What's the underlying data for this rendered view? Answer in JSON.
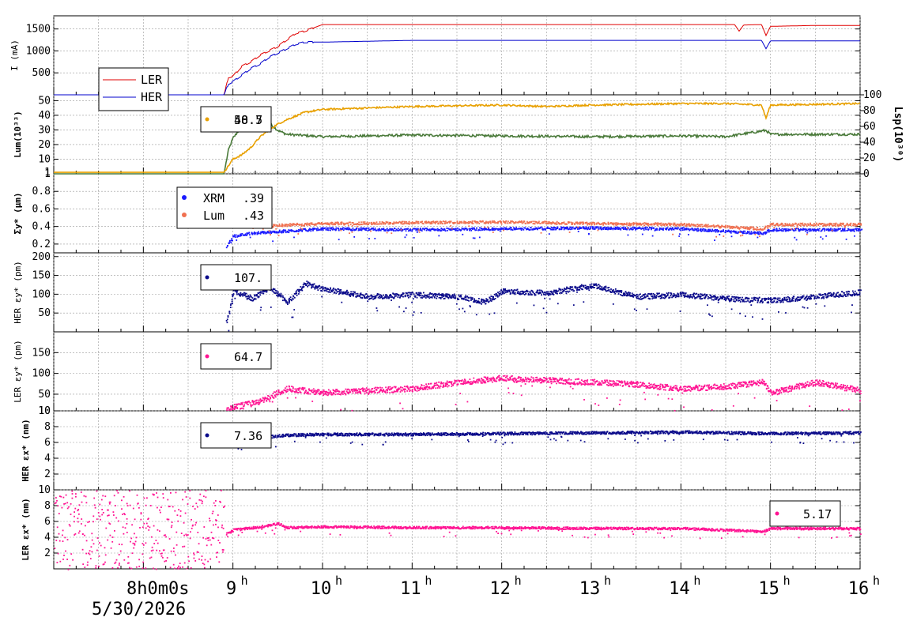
{
  "x_axis": {
    "first_tick_label": "8h0m0s",
    "first_tick_date": "5/30/2026",
    "ticks": [
      "9h",
      "10h",
      "11h",
      "12h",
      "13h",
      "14h",
      "15h",
      "16h"
    ],
    "range_hours": [
      7.0,
      16.0
    ]
  },
  "panels": [
    {
      "ylabel": "I (mA)",
      "yticks": [
        "500",
        "1000",
        "1500"
      ],
      "legend": [
        "LER",
        "HER"
      ]
    },
    {
      "ylabel": "Lum(10³³)",
      "yticks": [
        "1",
        "10",
        "20",
        "30",
        "40",
        "50"
      ],
      "y2label": "Lsp(10³⁰)",
      "y2ticks": [
        "0",
        "20",
        "40",
        "60",
        "80",
        "100"
      ],
      "legend_value": "50.5",
      "legend_value_overlap": "48.7"
    },
    {
      "ylabel": "Σy* (μm)",
      "yticks": [
        "0.2",
        "0.4",
        "0.6",
        "0.8",
        "1"
      ],
      "legend": [
        {
          "name": "XRM",
          "value": ".39"
        },
        {
          "name": "Lum",
          "value": ".43"
        }
      ]
    },
    {
      "ylabel": "HER εy* (pm)",
      "yticks": [
        "50",
        "100",
        "150",
        "200"
      ],
      "legend_value": "107."
    },
    {
      "ylabel": "LER εy* (pm)",
      "yticks": [
        "10",
        "50",
        "100",
        "150"
      ],
      "legend_value": "64.7"
    },
    {
      "ylabel": "HER εx* (nm)",
      "yticks": [
        "2",
        "4",
        "6",
        "8",
        "10"
      ],
      "legend_value": "7.36"
    },
    {
      "ylabel": "LER εx* (nm)",
      "yticks": [
        "2",
        "4",
        "6",
        "8",
        "10"
      ],
      "legend_value": "5.17"
    }
  ],
  "colors": {
    "ler": "#e00000",
    "her": "#0000cc",
    "lum_green": "#4a7a3a",
    "lsp_orange": "#e8a000",
    "xrm_blue": "#1a1aff",
    "lum_salmon": "#f07050",
    "navy": "#0a0a8a",
    "pink": "#ff1493",
    "grid": "#999999"
  },
  "chart_data": [
    {
      "type": "line",
      "ylabel": "I (mA)",
      "ylim": [
        0,
        1800
      ],
      "series": [
        {
          "name": "LER",
          "x": [
            7.0,
            8.9,
            8.95,
            9.0,
            9.1,
            9.2,
            9.3,
            9.4,
            9.5,
            9.6,
            9.7,
            9.8,
            10.0,
            11.0,
            12.0,
            13.0,
            14.0,
            14.6,
            14.65,
            14.7,
            14.9,
            14.95,
            15.0,
            15.5,
            16.0
          ],
          "y": [
            0,
            0,
            400,
            420,
            650,
            750,
            900,
            1000,
            1100,
            1250,
            1400,
            1450,
            1600,
            1600,
            1600,
            1600,
            1600,
            1600,
            1450,
            1590,
            1600,
            1350,
            1560,
            1580,
            1580
          ]
        },
        {
          "name": "HER",
          "x": [
            7.0,
            8.9,
            8.95,
            9.0,
            9.1,
            9.2,
            9.3,
            9.4,
            9.5,
            9.6,
            9.7,
            9.8,
            10.0,
            11.0,
            12.0,
            13.0,
            14.0,
            14.9,
            14.95,
            15.0,
            16.0
          ],
          "y": [
            0,
            0,
            250,
            300,
            450,
            600,
            700,
            850,
            950,
            1050,
            1150,
            1200,
            1200,
            1240,
            1240,
            1240,
            1240,
            1240,
            1050,
            1230,
            1230
          ]
        }
      ]
    },
    {
      "type": "line",
      "ylabel": "Lum(10³³)",
      "y2label": "Lsp(10³⁰)",
      "ylim": [
        0,
        54
      ],
      "y2lim": [
        0,
        100
      ],
      "series": [
        {
          "name": "Lum",
          "x": [
            7.0,
            8.9,
            9.0,
            9.1,
            9.2,
            9.3,
            9.4,
            9.5,
            9.6,
            9.8,
            10.0,
            11.0,
            12.0,
            12.5,
            13.0,
            14.0,
            14.5,
            14.9,
            14.95,
            15.0,
            16.0
          ],
          "y": [
            1,
            1,
            10,
            13,
            18,
            25,
            30,
            34,
            37,
            42,
            44,
            46,
            47,
            46,
            47,
            48,
            48,
            47,
            38,
            47,
            48
          ]
        },
        {
          "name": "Lsp",
          "x": [
            7.0,
            8.9,
            8.95,
            9.0,
            9.1,
            9.2,
            9.3,
            9.4,
            9.5,
            9.6,
            10.0,
            11.0,
            12.0,
            13.0,
            14.0,
            14.5,
            14.95,
            15.0,
            16.0
          ],
          "y2": [
            0,
            0,
            30,
            45,
            60,
            70,
            72,
            65,
            55,
            50,
            47,
            49,
            48,
            47,
            48,
            47,
            55,
            50,
            50
          ]
        }
      ]
    },
    {
      "type": "scatter",
      "ylabel": "Σy* (μm)",
      "ylim": [
        0.1,
        1.0
      ],
      "series": [
        {
          "name": "XRM",
          "x": [
            8.92,
            9.0,
            9.2,
            9.5,
            10.0,
            11.0,
            12.0,
            13.0,
            14.0,
            14.9,
            15.0,
            16.0
          ],
          "y": [
            0.18,
            0.3,
            0.33,
            0.35,
            0.38,
            0.37,
            0.38,
            0.39,
            0.38,
            0.33,
            0.37,
            0.37
          ]
        },
        {
          "name": "Lum",
          "x": [
            9.0,
            9.05,
            9.2,
            9.5,
            10.0,
            11.0,
            12.0,
            13.0,
            14.0,
            14.9,
            15.0,
            16.0
          ],
          "y": [
            0.65,
            0.55,
            0.4,
            0.42,
            0.44,
            0.45,
            0.46,
            0.44,
            0.43,
            0.38,
            0.43,
            0.43
          ]
        }
      ]
    },
    {
      "type": "scatter",
      "ylabel": "HER εy* (pm)",
      "ylim": [
        0,
        210
      ],
      "series": [
        {
          "x": [
            8.92,
            9.0,
            9.2,
            9.4,
            9.6,
            9.8,
            10.0,
            10.5,
            11.0,
            11.5,
            11.8,
            12.0,
            12.5,
            13.0,
            13.5,
            14.0,
            14.5,
            15.0,
            15.5,
            16.0
          ],
          "y": [
            30,
            110,
            90,
            120,
            80,
            130,
            115,
            95,
            100,
            95,
            80,
            110,
            105,
            125,
            95,
            100,
            90,
            85,
            95,
            107
          ]
        }
      ]
    },
    {
      "type": "scatter",
      "ylabel": "LER εy* (pm)",
      "ylim": [
        10,
        200
      ],
      "series": [
        {
          "x": [
            8.92,
            9.0,
            9.3,
            9.6,
            10.0,
            10.5,
            11.0,
            11.5,
            12.0,
            12.5,
            13.0,
            13.5,
            14.0,
            14.5,
            14.9,
            15.0,
            15.5,
            16.0
          ],
          "y": [
            15,
            20,
            35,
            65,
            55,
            60,
            65,
            80,
            90,
            85,
            80,
            75,
            65,
            70,
            80,
            55,
            80,
            60
          ]
        }
      ]
    },
    {
      "type": "scatter",
      "ylabel": "HER εx* (nm)",
      "ylim": [
        0,
        10
      ],
      "series": [
        {
          "x": [
            8.92,
            9.0,
            9.3,
            9.6,
            10.0,
            11.0,
            12.0,
            13.0,
            14.0,
            15.0,
            16.0
          ],
          "y": [
            6.5,
            6.0,
            6.7,
            7.0,
            7.1,
            7.1,
            7.2,
            7.3,
            7.4,
            7.2,
            7.3
          ]
        }
      ]
    },
    {
      "type": "scatter",
      "ylabel": "LER εx* (nm)",
      "ylim": [
        0,
        10
      ],
      "series": [
        {
          "x": [
            8.92,
            9.0,
            9.3,
            9.5,
            9.6,
            10.0,
            11.0,
            12.0,
            13.0,
            14.0,
            14.9,
            15.0,
            16.0
          ],
          "y": [
            4.5,
            5.0,
            5.4,
            5.8,
            5.3,
            5.4,
            5.3,
            5.3,
            5.2,
            5.2,
            4.8,
            5.2,
            5.17
          ]
        }
      ]
    }
  ]
}
